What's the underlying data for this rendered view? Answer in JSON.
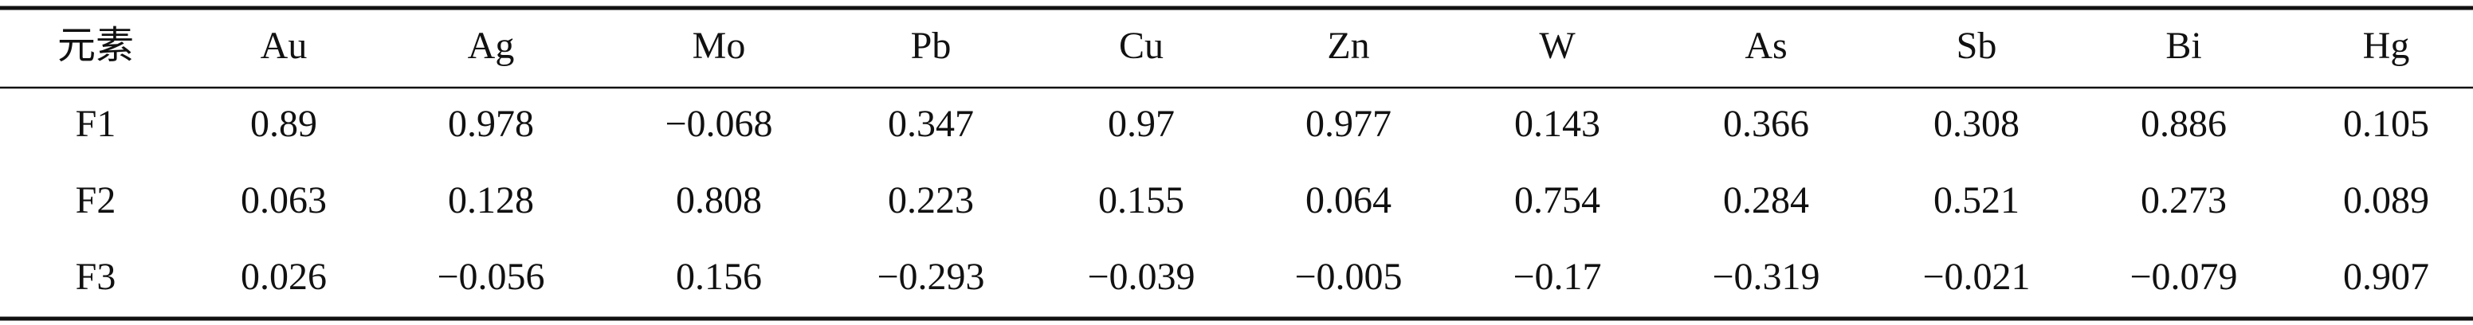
{
  "table": {
    "header": [
      "元素",
      "Au",
      "Ag",
      "Mo",
      "Pb",
      "Cu",
      "Zn",
      "W",
      "As",
      "Sb",
      "Bi",
      "Hg"
    ],
    "rows": [
      [
        "F1",
        "0.89",
        "0.978",
        "−0.068",
        "0.347",
        "0.97",
        "0.977",
        "0.143",
        "0.366",
        "0.308",
        "0.886",
        "0.105"
      ],
      [
        "F2",
        "0.063",
        "0.128",
        "0.808",
        "0.223",
        "0.155",
        "0.064",
        "0.754",
        "0.284",
        "0.521",
        "0.273",
        "0.089"
      ],
      [
        "F3",
        "0.026",
        "−0.056",
        "0.156",
        "−0.293",
        "−0.039",
        "−0.005",
        "−0.17",
        "−0.319",
        "−0.021",
        "−0.079",
        "0.907"
      ]
    ]
  }
}
